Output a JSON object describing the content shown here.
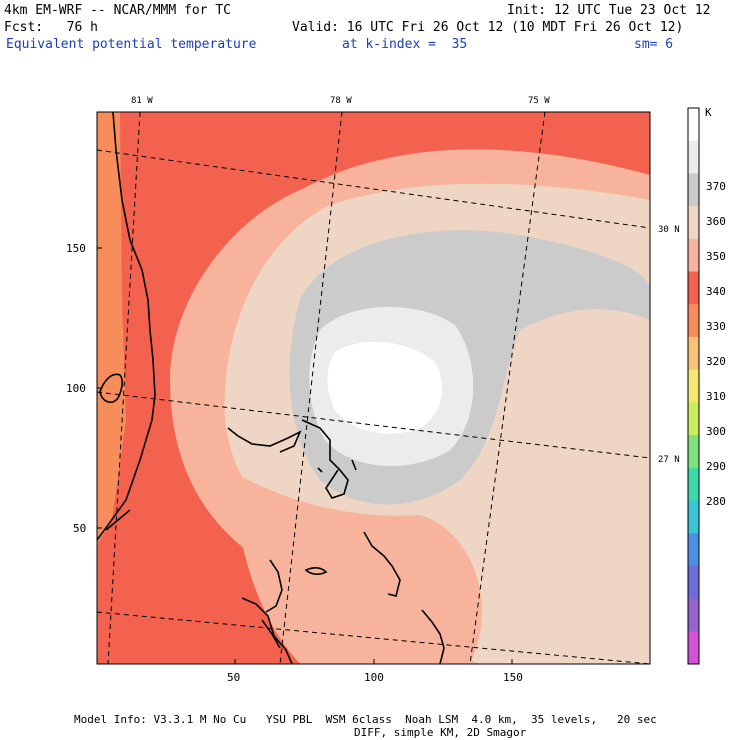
{
  "header": {
    "model": "4km EM-WRF -- NCAR/MMM for TC",
    "init": "Init: 12 UTC Tue 23 Oct 12",
    "fcst": "Fcst:   76 h",
    "valid": "Valid: 16 UTC Fri 26 Oct 12 (10 MDT Fri 26 Oct 12)",
    "field": "Equivalent potential temperature",
    "level": "at k-index =  35",
    "smoothing": "sm= 6"
  },
  "map": {
    "top_ticks": [
      "81 W",
      "78 W",
      "75 W"
    ],
    "right_ticks": [
      "30 N",
      "27 N"
    ],
    "left_ticks": [
      "150",
      "100",
      "50"
    ],
    "bottom_ticks": [
      "50",
      "100",
      "150"
    ]
  },
  "colorbar": {
    "unit": "K",
    "labels": [
      "370",
      "360",
      "350",
      "340",
      "330",
      "320",
      "310",
      "300",
      "290",
      "280"
    ],
    "colors": [
      "#ffffff",
      "#ececec",
      "#cbcbcb",
      "#efd6c4",
      "#f7b39b",
      "#f2624f",
      "#f88d5c",
      "#f9c078",
      "#f4e873",
      "#c9ec60",
      "#7de37c",
      "#3ed9a8",
      "#3ac5d4",
      "#4e8fe6",
      "#6c6cdb",
      "#9464cc",
      "#d452d8"
    ]
  },
  "footer": {
    "line1": "Model Info: V3.3.1 M No Cu   YSU PBL  WSM 6class  Noah LSM  4.0 km,  35 levels,   20 sec",
    "line2": "DIFF, simple KM, 2D Smagor"
  }
}
